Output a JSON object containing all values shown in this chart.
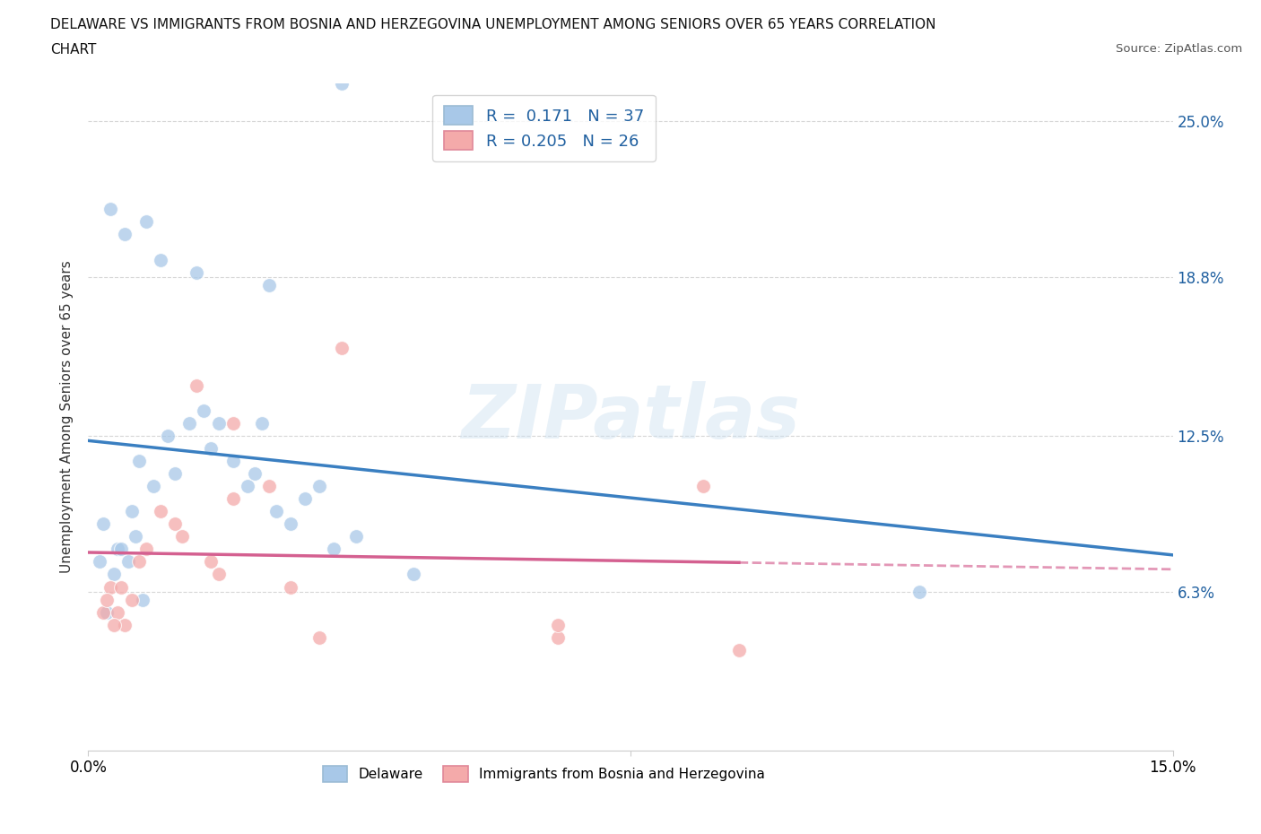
{
  "title_line1": "DELAWARE VS IMMIGRANTS FROM BOSNIA AND HERZEGOVINA UNEMPLOYMENT AMONG SENIORS OVER 65 YEARS CORRELATION",
  "title_line2": "CHART",
  "source_text": "Source: ZipAtlas.com",
  "ylabel": "Unemployment Among Seniors over 65 years",
  "xlim": [
    0.0,
    15.0
  ],
  "ylim": [
    0.0,
    26.5
  ],
  "ytick_vals": [
    0.0,
    6.3,
    12.5,
    18.8,
    25.0
  ],
  "ytick_labels_right": [
    "",
    "6.3%",
    "12.5%",
    "18.8%",
    "25.0%"
  ],
  "blue_color": "#a8c8e8",
  "pink_color": "#f4aaaa",
  "blue_line_color": "#3a7fc1",
  "pink_line_color": "#d46090",
  "blue_r": 0.171,
  "blue_n": 37,
  "pink_r": 0.205,
  "pink_n": 26,
  "watermark": "ZIPatlas",
  "legend_label_blue": "Delaware",
  "legend_label_pink": "Immigrants from Bosnia and Herzegovina",
  "blue_x": [
    0.5,
    1.0,
    3.5,
    0.3,
    0.8,
    1.5,
    2.5,
    0.2,
    0.4,
    0.6,
    0.7,
    0.9,
    1.1,
    1.2,
    1.4,
    1.6,
    1.7,
    1.8,
    2.0,
    2.2,
    2.3,
    2.4,
    2.6,
    2.8,
    3.0,
    3.2,
    3.4,
    3.7,
    0.15,
    0.25,
    0.35,
    0.45,
    0.55,
    0.65,
    0.75,
    11.5,
    4.5
  ],
  "blue_y": [
    20.5,
    19.5,
    26.5,
    21.5,
    21.0,
    19.0,
    18.5,
    9.0,
    8.0,
    9.5,
    11.5,
    10.5,
    12.5,
    11.0,
    13.0,
    13.5,
    12.0,
    13.0,
    11.5,
    10.5,
    11.0,
    13.0,
    9.5,
    9.0,
    10.0,
    10.5,
    8.0,
    8.5,
    7.5,
    5.5,
    7.0,
    8.0,
    7.5,
    8.5,
    6.0,
    6.3,
    7.0
  ],
  "pink_x": [
    0.3,
    0.6,
    1.5,
    2.0,
    0.4,
    0.5,
    0.7,
    0.8,
    1.0,
    1.2,
    1.3,
    1.7,
    1.8,
    2.5,
    3.5,
    0.2,
    0.25,
    0.35,
    0.45,
    2.8,
    6.5,
    6.5,
    8.5,
    9.0,
    2.0,
    3.2
  ],
  "pink_y": [
    6.5,
    6.0,
    14.5,
    13.0,
    5.5,
    5.0,
    7.5,
    8.0,
    9.5,
    9.0,
    8.5,
    7.5,
    7.0,
    10.5,
    16.0,
    5.5,
    6.0,
    5.0,
    6.5,
    6.5,
    4.5,
    5.0,
    10.5,
    4.0,
    10.0,
    4.5
  ],
  "grid_color": "#cccccc",
  "bg_color": "#ffffff",
  "label_color_blue": "#2060a0"
}
